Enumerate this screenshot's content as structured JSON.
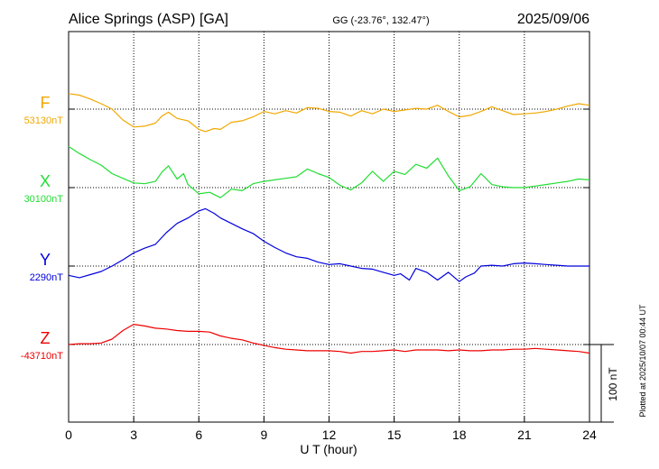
{
  "header": {
    "station": "Alice Springs (ASP)  [GA]",
    "coords": "GG (-23.76°, 132.47°)",
    "date": "2025/09/06"
  },
  "footer": {
    "plotted": "Plotted at 2025/10/07 00:44 UT"
  },
  "chart_data": {
    "type": "line",
    "title": "Alice Springs (ASP)  [GA]",
    "xlabel": "U T (hour)",
    "xlim": [
      0,
      24
    ],
    "xticks": [
      0,
      3,
      6,
      9,
      12,
      15,
      18,
      21,
      24
    ],
    "grid": true,
    "scale_bar": {
      "label": "100 nT",
      "value": 100
    },
    "series": [
      {
        "name": "F",
        "baseline_label": "53130nT",
        "baseline": 53130,
        "color": "#f0a800",
        "x": [
          0,
          0.5,
          1,
          1.5,
          2,
          2.5,
          3,
          3.5,
          4,
          4.3,
          4.6,
          5,
          5.5,
          6,
          6.3,
          6.7,
          7,
          7.5,
          8,
          8.5,
          9,
          9.5,
          10,
          10.5,
          11,
          11.5,
          12,
          12.5,
          13,
          13.5,
          14,
          14.5,
          15,
          15.5,
          16,
          16.5,
          17,
          17.5,
          18,
          18.5,
          19,
          19.5,
          20,
          20.5,
          21,
          21.5,
          22,
          22.5,
          23,
          23.5,
          24
        ],
        "y": [
          53150,
          53148,
          53143,
          53137,
          53130,
          53116,
          53107,
          53108,
          53112,
          53121,
          53126,
          53118,
          53115,
          53104,
          53101,
          53105,
          53104,
          53113,
          53115,
          53120,
          53127,
          53124,
          53128,
          53125,
          53132,
          53131,
          53127,
          53126,
          53121,
          53128,
          53124,
          53130,
          53127,
          53129,
          53131,
          53130,
          53135,
          53127,
          53120,
          53122,
          53127,
          53133,
          53128,
          53123,
          53124,
          53125,
          53127,
          53130,
          53134,
          53137,
          53135
        ]
      },
      {
        "name": "X",
        "baseline_label": "30100nT",
        "baseline": 30100,
        "color": "#22dd33",
        "x": [
          0,
          0.5,
          1,
          1.5,
          2,
          2.5,
          3,
          3.5,
          4,
          4.3,
          4.6,
          5,
          5.3,
          5.5,
          6,
          6.5,
          7,
          7.5,
          8,
          8.5,
          9,
          9.5,
          10,
          10.5,
          11,
          11.5,
          12,
          12.5,
          13,
          13.5,
          14,
          14.5,
          15,
          15.5,
          16,
          16.5,
          17,
          17.5,
          18,
          18.5,
          19,
          19.5,
          20,
          20.5,
          21,
          21.5,
          22,
          22.5,
          23,
          23.5,
          24
        ],
        "y": [
          30153,
          30144,
          30136,
          30129,
          30118,
          30112,
          30106,
          30105,
          30108,
          30120,
          30128,
          30111,
          30118,
          30104,
          30092,
          30094,
          30087,
          30098,
          30096,
          30105,
          30108,
          30110,
          30112,
          30114,
          30124,
          30118,
          30113,
          30103,
          30097,
          30106,
          30121,
          30108,
          30121,
          30117,
          30130,
          30125,
          30138,
          30115,
          30096,
          30101,
          30118,
          30104,
          30101,
          30100,
          30100,
          30102,
          30104,
          30106,
          30108,
          30111,
          30110
        ]
      },
      {
        "name": "Y",
        "baseline_label": "2290nT",
        "baseline": 2290,
        "color": "#0000dd",
        "x": [
          0,
          0.5,
          1,
          1.5,
          2,
          2.5,
          3,
          3.5,
          4,
          4.5,
          5,
          5.5,
          6,
          6.3,
          6.7,
          7,
          7.5,
          8,
          8.5,
          9,
          9.5,
          10,
          10.5,
          11,
          11.5,
          12,
          12.5,
          13,
          13.5,
          14,
          14.5,
          15,
          15.3,
          15.7,
          16,
          16.5,
          17,
          17.5,
          18,
          18.3,
          18.7,
          19,
          19.5,
          20,
          20.5,
          21,
          21.5,
          22,
          22.5,
          23,
          23.5,
          24
        ],
        "y": [
          2278,
          2275,
          2279,
          2283,
          2290,
          2298,
          2307,
          2313,
          2318,
          2333,
          2345,
          2352,
          2361,
          2364,
          2358,
          2352,
          2345,
          2338,
          2332,
          2322,
          2314,
          2307,
          2302,
          2300,
          2295,
          2292,
          2293,
          2290,
          2287,
          2286,
          2282,
          2278,
          2280,
          2272,
          2287,
          2282,
          2272,
          2282,
          2270,
          2276,
          2281,
          2290,
          2291,
          2290,
          2293,
          2294,
          2293,
          2292,
          2291,
          2290,
          2290,
          2290
        ]
      },
      {
        "name": "Z",
        "baseline_label": "-43710nT",
        "baseline": -43710,
        "color": "#ee0000",
        "x": [
          0,
          0.5,
          1,
          1.5,
          2,
          2.5,
          3,
          3.5,
          4,
          4.5,
          5,
          5.5,
          6,
          6.5,
          7,
          7.5,
          8,
          8.5,
          9,
          9.5,
          10,
          10.5,
          11,
          11.5,
          12,
          12.5,
          13,
          13.5,
          14,
          14.5,
          15,
          15.5,
          16,
          16.5,
          17,
          17.5,
          18,
          18.5,
          19,
          19.5,
          20,
          20.5,
          21,
          21.5,
          22,
          22.5,
          23,
          23.5,
          24
        ],
        "y": [
          -43710,
          -43709,
          -43709,
          -43708,
          -43703,
          -43692,
          -43684,
          -43686,
          -43689,
          -43690,
          -43692,
          -43693,
          -43693,
          -43694,
          -43699,
          -43702,
          -43704,
          -43708,
          -43711,
          -43714,
          -43716,
          -43717,
          -43718,
          -43718,
          -43718,
          -43719,
          -43721,
          -43719,
          -43719,
          -43718,
          -43717,
          -43719,
          -43717,
          -43717,
          -43717,
          -43718,
          -43717,
          -43718,
          -43718,
          -43717,
          -43717,
          -43716,
          -43716,
          -43715,
          -43716,
          -43717,
          -43718,
          -43719,
          -43721
        ]
      }
    ]
  }
}
